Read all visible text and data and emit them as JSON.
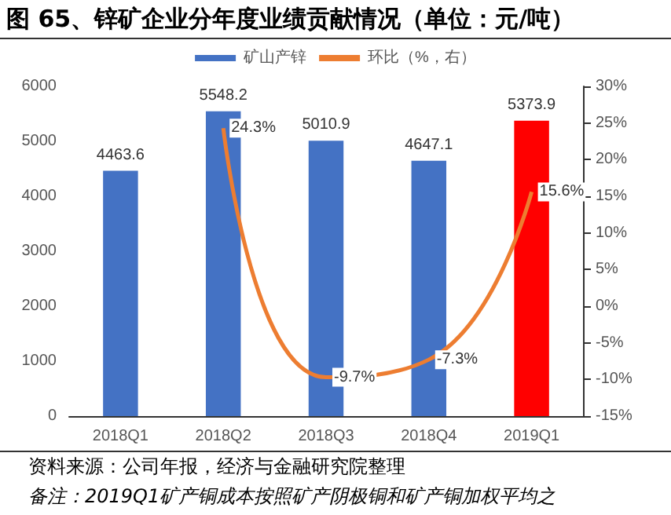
{
  "chart_data": {
    "type": "bar",
    "title": "图 65、锌矿企业分年度业绩贡献情况（单位：元/吨）",
    "categories": [
      "2018Q1",
      "2018Q2",
      "2018Q3",
      "2018Q4",
      "2019Q1"
    ],
    "series": [
      {
        "name": "矿山产锌",
        "color": "#4472c4",
        "colors": [
          "#4472c4",
          "#4472c4",
          "#4472c4",
          "#4472c4",
          "#ff0000"
        ],
        "values": [
          4463.6,
          5548.2,
          5010.9,
          4647.1,
          5373.9
        ],
        "value_labels": [
          "4463.6",
          "5548.2",
          "5010.9",
          "4647.1",
          "5373.9"
        ]
      },
      {
        "name": "环比（%，右）",
        "type": "line",
        "axis": "y2",
        "color": "#ed7d31",
        "values": [
          null,
          24.3,
          -9.7,
          -7.3,
          15.6
        ],
        "value_labels": [
          null,
          "24.3%",
          "-9.7%",
          "-7.3%",
          "15.6%"
        ]
      }
    ],
    "ylim": [
      0,
      6000
    ],
    "yticks": [
      0,
      1000,
      2000,
      3000,
      4000,
      5000,
      6000
    ],
    "y2lim": [
      -15,
      30
    ],
    "y2ticks": [
      {
        "value": -15,
        "label": "-15%"
      },
      {
        "value": -10,
        "label": "-10%"
      },
      {
        "value": -5,
        "label": "-5%"
      },
      {
        "value": 0,
        "label": "0%"
      },
      {
        "value": 5,
        "label": "5%"
      },
      {
        "value": 10,
        "label": "10%"
      },
      {
        "value": 15,
        "label": "15%"
      },
      {
        "value": 20,
        "label": "20%"
      },
      {
        "value": 25,
        "label": "25%"
      },
      {
        "value": 30,
        "label": "30%"
      }
    ],
    "grid": false,
    "legend": "top",
    "marker": "none",
    "line_style": "solid",
    "annotations": [
      "资料来源：公司年报，经济与金融研究院整理",
      "备注：2019Q1矿产铜成本按照矿产阴极铜和矿产铜加权平均之"
    ]
  }
}
